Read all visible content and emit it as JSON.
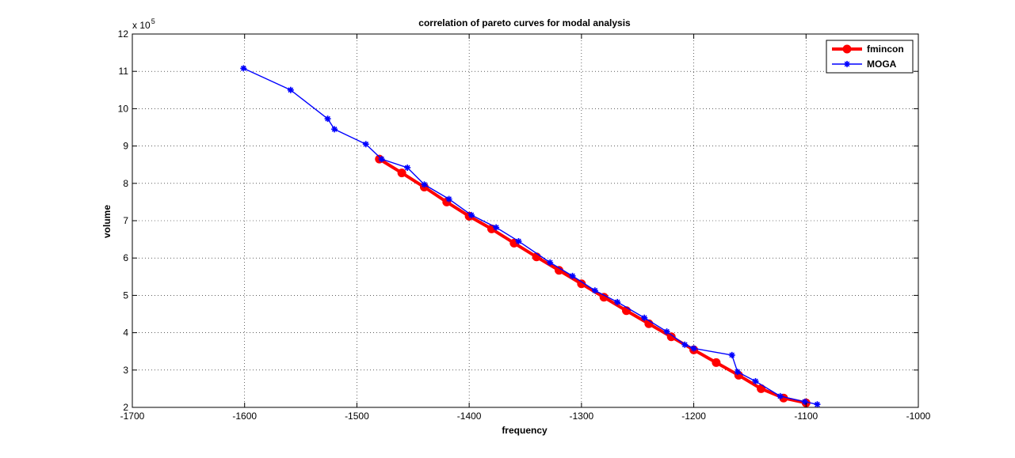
{
  "chart_data": {
    "type": "line",
    "title": "correlation of pareto curves for modal analysis",
    "xlabel": "frequency",
    "ylabel": "volume",
    "xlim": [
      -1700,
      -1000
    ],
    "ylim": [
      2,
      12
    ],
    "xticks": [
      "-1700",
      "-1600",
      "-1500",
      "-1400",
      "-1300",
      "-1200",
      "-1100",
      "-1000"
    ],
    "yticks": [
      "2",
      "3",
      "4",
      "5",
      "6",
      "7",
      "8",
      "9",
      "10",
      "11",
      "12"
    ],
    "y_multiplier": {
      "base": "x 10",
      "exponent": "5"
    },
    "grid": true,
    "legend_position": "top-right",
    "series": [
      {
        "name": "fmincon",
        "color": "#ff0000",
        "line_width": "thick",
        "marker": "circle",
        "x": [
          -1480,
          -1460,
          -1440,
          -1420,
          -1400,
          -1380,
          -1360,
          -1340,
          -1320,
          -1300,
          -1280,
          -1260,
          -1240,
          -1220,
          -1200,
          -1180,
          -1160,
          -1140,
          -1120,
          -1100
        ],
        "y": [
          8.65,
          8.28,
          7.9,
          7.5,
          7.12,
          6.78,
          6.4,
          6.03,
          5.67,
          5.31,
          4.95,
          4.59,
          4.24,
          3.89,
          3.54,
          3.2,
          2.86,
          2.5,
          2.25,
          2.12
        ]
      },
      {
        "name": "MOGA",
        "color": "#0000ff",
        "line_width": "thin",
        "marker": "star",
        "x": [
          -1601,
          -1559,
          -1526,
          -1520,
          -1492,
          -1478,
          -1455,
          -1440,
          -1418,
          -1398,
          -1376,
          -1356,
          -1328,
          -1308,
          -1288,
          -1268,
          -1244,
          -1224,
          -1208,
          -1200,
          -1166,
          -1161,
          -1145,
          -1123,
          -1101,
          -1090
        ],
        "y": [
          11.08,
          10.5,
          9.73,
          9.45,
          9.05,
          8.65,
          8.42,
          7.97,
          7.58,
          7.15,
          6.82,
          6.45,
          5.88,
          5.52,
          5.13,
          4.82,
          4.4,
          4.03,
          3.68,
          3.58,
          3.4,
          2.95,
          2.7,
          2.3,
          2.15,
          2.08
        ]
      }
    ]
  }
}
